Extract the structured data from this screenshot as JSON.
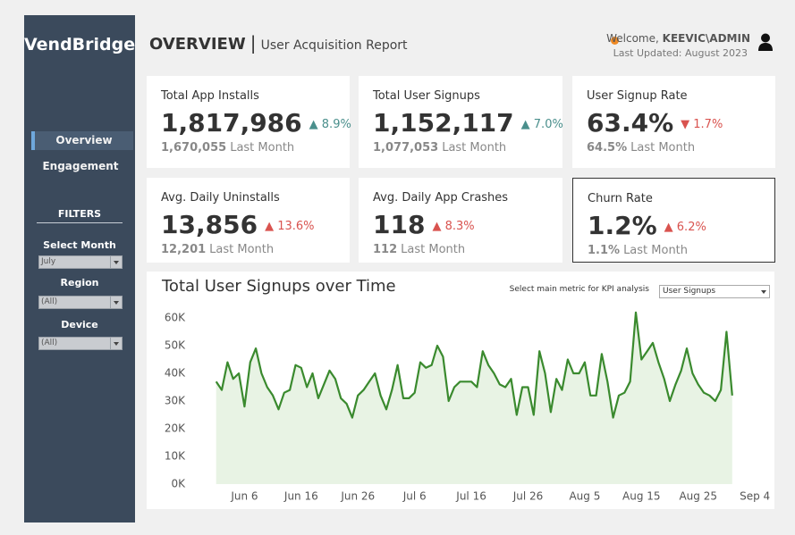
{
  "sidebar": {
    "brand": "VendBridge",
    "nav": [
      "Overview",
      "Engagement"
    ],
    "filters_heading": "FILTERS",
    "filters": [
      {
        "label": "Select Month",
        "value": "July"
      },
      {
        "label": "Region",
        "value": "(All)"
      },
      {
        "label": "Device",
        "value": "(All)"
      }
    ]
  },
  "header": {
    "title": "OVERVIEW",
    "separator": "|",
    "subtitle": "User Acquisition Report",
    "welcome": "Welcome,",
    "user": "KEEVIC\\ADMIN",
    "last_updated": "Last Updated: August 2023"
  },
  "kpis": [
    {
      "title": "Total App Installs",
      "value": "1,817,986",
      "change": "▲ 8.9%",
      "change_color": "#4a8f8c",
      "previous": "1,670,055",
      "previous_label": "Last Month"
    },
    {
      "title": "Total User Signups",
      "value": "1,152,117",
      "change": "▲ 7.0%",
      "change_color": "#4a8f8c",
      "previous": "1,077,053",
      "previous_label": "Last Month"
    },
    {
      "title": "User Signup Rate",
      "value": "63.4%",
      "change": "▼ 1.7%",
      "change_color": "#d9534f",
      "previous": "64.5%",
      "previous_label": "Last Month"
    },
    {
      "title": "Avg. Daily Uninstalls",
      "value": "13,856",
      "change": "▲ 13.6%",
      "change_color": "#d9534f",
      "previous": "12,201",
      "previous_label": "Last Month"
    },
    {
      "title": "Avg. Daily App Crashes",
      "value": "118",
      "change": "▲ 8.3%",
      "change_color": "#d9534f",
      "previous": "112",
      "previous_label": "Last Month"
    },
    {
      "title": "Churn Rate",
      "value": "1.2%",
      "change": "▲ 6.2%",
      "change_color": "#d9534f",
      "previous": "1.1%",
      "previous_label": "Last Month",
      "highlighted": true
    }
  ],
  "metric_selector": {
    "label": "Select main metric for KPI analysis",
    "value": "User Signups"
  },
  "chart_data": {
    "type": "line",
    "title": "Total User Signups over Time",
    "x": [
      1,
      2,
      3,
      4,
      5,
      6,
      7,
      8,
      9,
      10,
      11,
      12,
      13,
      14,
      15,
      16,
      17,
      18,
      19,
      20,
      21,
      22,
      23,
      24,
      25,
      26,
      27,
      28,
      29,
      30,
      31,
      32,
      33,
      34,
      35,
      36,
      37,
      38,
      39,
      40,
      41,
      42,
      43,
      44,
      45,
      46,
      47,
      48,
      49,
      50,
      51,
      52,
      53,
      54,
      55,
      56,
      57,
      58,
      59,
      60,
      61,
      62,
      63,
      64,
      65,
      66,
      67,
      68,
      69,
      70,
      71,
      72,
      73,
      74,
      75,
      76,
      77,
      78,
      79,
      80,
      81,
      82,
      83,
      84,
      85,
      86,
      87,
      88,
      89,
      90,
      91,
      92
    ],
    "series": [
      {
        "name": "Total User Signups",
        "color": "#3a8a2e",
        "fill": "#e8f3e4",
        "values": [
          37000,
          34000,
          44000,
          38000,
          40000,
          28000,
          44000,
          49000,
          40000,
          35000,
          32000,
          27000,
          33000,
          34000,
          43000,
          42000,
          35000,
          40000,
          31000,
          36000,
          41000,
          38000,
          31000,
          29000,
          24000,
          32000,
          34000,
          37000,
          40000,
          32000,
          27000,
          34000,
          43000,
          31000,
          31000,
          33000,
          44000,
          42000,
          43000,
          50000,
          46000,
          30000,
          35000,
          37000,
          37000,
          37000,
          35000,
          48000,
          43000,
          40000,
          36000,
          35000,
          38000,
          25000,
          35000,
          35000,
          25000,
          48000,
          40000,
          26000,
          38000,
          34000,
          45000,
          40000,
          40000,
          44000,
          32000,
          32000,
          47000,
          37000,
          24000,
          32000,
          33000,
          37000,
          62000,
          45000,
          48000,
          51000,
          44000,
          38000,
          30000,
          36000,
          41000,
          49000,
          40000,
          36000,
          33000,
          32000,
          30000,
          34000,
          55000,
          32000
        ]
      }
    ],
    "xlim": [
      -4,
      98.5
    ],
    "xticks": [
      {
        "value": 6,
        "label": "Jun 6"
      },
      {
        "value": 16,
        "label": "Jun 16"
      },
      {
        "value": 26,
        "label": "Jun 26"
      },
      {
        "value": 36,
        "label": "Jul 6"
      },
      {
        "value": 46,
        "label": "Jul 16"
      },
      {
        "value": 56,
        "label": "Jul 26"
      },
      {
        "value": 66,
        "label": "Aug 5"
      },
      {
        "value": 76,
        "label": "Aug 15"
      },
      {
        "value": 86,
        "label": "Aug 25"
      },
      {
        "value": 96,
        "label": "Sep 4"
      }
    ],
    "ylim": [
      0,
      65000
    ],
    "yticks": [
      {
        "value": 0,
        "label": "0K"
      },
      {
        "value": 10000,
        "label": "10K"
      },
      {
        "value": 20000,
        "label": "20K"
      },
      {
        "value": 30000,
        "label": "30K"
      },
      {
        "value": 40000,
        "label": "40K"
      },
      {
        "value": 50000,
        "label": "50K"
      },
      {
        "value": 60000,
        "label": "60K"
      }
    ],
    "grid": false
  }
}
